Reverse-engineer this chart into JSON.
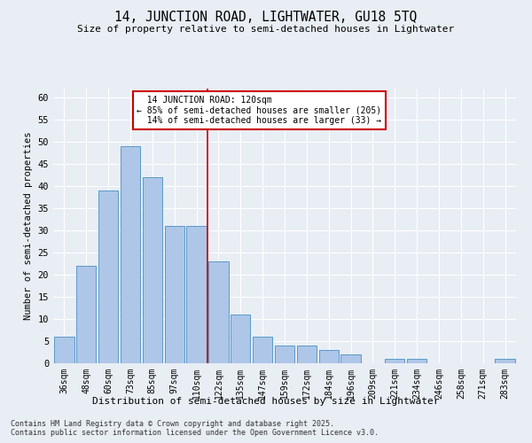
{
  "title": "14, JUNCTION ROAD, LIGHTWATER, GU18 5TQ",
  "subtitle": "Size of property relative to semi-detached houses in Lightwater",
  "xlabel": "Distribution of semi-detached houses by size in Lightwater",
  "ylabel": "Number of semi-detached properties",
  "categories": [
    "36sqm",
    "48sqm",
    "60sqm",
    "73sqm",
    "85sqm",
    "97sqm",
    "110sqm",
    "122sqm",
    "135sqm",
    "147sqm",
    "159sqm",
    "172sqm",
    "184sqm",
    "196sqm",
    "209sqm",
    "221sqm",
    "234sqm",
    "246sqm",
    "258sqm",
    "271sqm",
    "283sqm"
  ],
  "values": [
    6,
    22,
    39,
    49,
    42,
    31,
    31,
    23,
    11,
    6,
    4,
    4,
    3,
    2,
    0,
    1,
    1,
    0,
    0,
    0,
    1
  ],
  "bar_color": "#aec6e8",
  "bar_edge_color": "#5a9ac9",
  "property_label": "14 JUNCTION ROAD: 120sqm",
  "pct_smaller": 85,
  "count_smaller": 205,
  "pct_larger": 14,
  "count_larger": 33,
  "vline_bin_index": 7,
  "ylim": [
    0,
    62
  ],
  "yticks": [
    0,
    5,
    10,
    15,
    20,
    25,
    30,
    35,
    40,
    45,
    50,
    55,
    60
  ],
  "bg_color": "#e8eef4",
  "grid_color": "#ffffff",
  "annotation_box_color": "#ffffff",
  "annotation_box_edge_color": "#cc0000",
  "footnote1": "Contains HM Land Registry data © Crown copyright and database right 2025.",
  "footnote2": "Contains public sector information licensed under the Open Government Licence v3.0."
}
